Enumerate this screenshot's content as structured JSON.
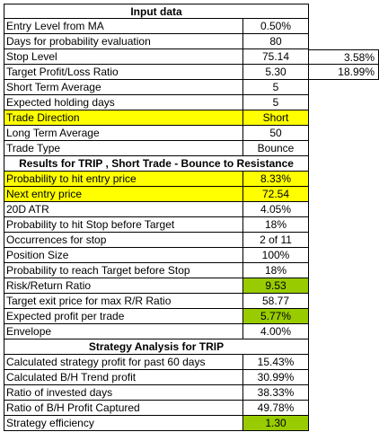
{
  "input_header": "Input data",
  "inputs": [
    {
      "label": "Entry Level from MA",
      "value": "0.50%"
    },
    {
      "label": "Days for probability evaluation",
      "value": "80"
    },
    {
      "label": "Stop Level",
      "value": "75.14",
      "extra": "3.58%"
    },
    {
      "label": "Target Profit/Loss Ratio",
      "value": "5.30",
      "extra": "18.99%"
    },
    {
      "label": "Short Term Average",
      "value": "5"
    },
    {
      "label": "Expected holding days",
      "value": "5"
    },
    {
      "label": "Trade Direction",
      "value": "Short"
    },
    {
      "label": "Long Term Average",
      "value": "50"
    },
    {
      "label": "Trade Type",
      "value": "Bounce"
    }
  ],
  "results_header": "Results for TRIP , Short Trade - Bounce to Resistance",
  "results": [
    {
      "label": "Probability to hit entry price",
      "value": "8.33%"
    },
    {
      "label": "Next entry price",
      "value": "72.54"
    },
    {
      "label": "20D ATR",
      "value": "4.05%"
    },
    {
      "label": "Probability to hit Stop before Target",
      "value": "18%"
    },
    {
      "label": "Occurrences for stop",
      "value": "2 of 11"
    },
    {
      "label": "Position Size",
      "value": "100%"
    },
    {
      "label": "Probability to reach Target before Stop",
      "value": "18%"
    },
    {
      "label": "Risk/Return Ratio",
      "value": "9.53"
    },
    {
      "label": "Target exit price for max R/R Ratio",
      "value": "58.77"
    },
    {
      "label": "Expected profit per trade",
      "value": "5.77%"
    },
    {
      "label": "Envelope",
      "value": "4.00%"
    }
  ],
  "strategy_header": "Strategy Analysis for TRIP",
  "strategy": [
    {
      "label": "Calculated strategy profit for past 60 days",
      "value": "15.43%"
    },
    {
      "label": "Calculated B/H Trend profit",
      "value": "30.99%"
    },
    {
      "label": "Ratio of invested days",
      "value": "38.33%"
    },
    {
      "label": "Ratio of B/H Profit Captured",
      "value": "49.78%"
    },
    {
      "label": "Strategy efficiency",
      "value": "1.30"
    }
  ],
  "colors": {
    "highlight_yellow": "#ffff00",
    "highlight_green": "#99cc00"
  }
}
